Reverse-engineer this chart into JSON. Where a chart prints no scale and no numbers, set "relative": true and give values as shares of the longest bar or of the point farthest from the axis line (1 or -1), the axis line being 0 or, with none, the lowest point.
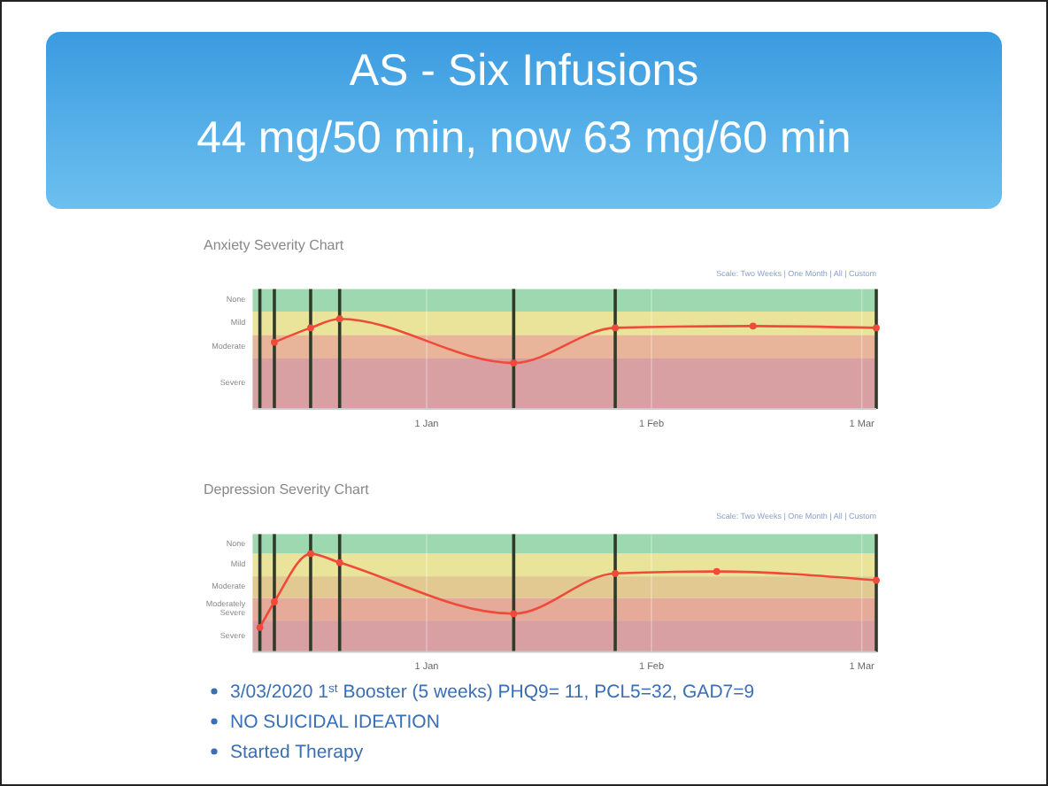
{
  "chart_data": [
    {
      "type": "other",
      "title": "AS -  Six Infusions",
      "subtitle": "44 mg/50 min, now 63 mg/60 min"
    },
    {
      "type": "line",
      "title": "Anxiety Severity Chart",
      "annotations": [
        "Scale: Two Weeks | One Month | All | Custom"
      ],
      "relative": true,
      "x": [
        "2019-12-11",
        "2019-12-16",
        "2019-12-20",
        "2020-01-13",
        "2020-01-27",
        "2020-02-15",
        "2020-03-03"
      ],
      "series": [
        {
          "color": "#f04a3a",
          "values": [
            0.74,
            0.9,
            1,
            0.51,
            0.9,
            0.92,
            0.9
          ]
        }
      ],
      "xlim": [
        "2019-12-08",
        "2020-03-03"
      ],
      "xticks": [
        {
          "value": "2020-01-01",
          "label": "1 Jan"
        },
        {
          "value": "2020-02-01",
          "label": "1 Feb"
        },
        {
          "value": "2020-03-01",
          "label": "1 Mar"
        }
      ],
      "bands": [
        {
          "axis": "y",
          "from": 1.08,
          "to": 1.33,
          "color": "#9dd8b0",
          "label": "None"
        },
        {
          "axis": "y",
          "from": 0.82,
          "to": 1.08,
          "color": "#e9e49a",
          "label": "Mild"
        },
        {
          "axis": "y",
          "from": 0.56,
          "to": 0.82,
          "color": "#e8b59a",
          "label": "Moderate"
        },
        {
          "axis": "y",
          "from": 0,
          "to": 0.56,
          "color": "#d9a0a3",
          "label": "Severe"
        }
      ],
      "ref_lines": [
        {
          "axis": "x",
          "value": "2019-12-09",
          "color": "#2f3a2a"
        },
        {
          "axis": "x",
          "value": "2019-12-11",
          "color": "#2f3a2a"
        },
        {
          "axis": "x",
          "value": "2019-12-16",
          "color": "#2f3a2a"
        },
        {
          "axis": "x",
          "value": "2019-12-20",
          "color": "#2f3a2a"
        },
        {
          "axis": "x",
          "value": "2020-01-13",
          "color": "#2f3a2a"
        },
        {
          "axis": "x",
          "value": "2020-01-27",
          "color": "#2f3a2a"
        },
        {
          "axis": "x",
          "value": "2020-03-03",
          "color": "#2f3a2a"
        }
      ],
      "grid": "x",
      "marker": "circle",
      "line_style": "solid"
    },
    {
      "type": "line",
      "title": "Depression Severity Chart",
      "annotations": [
        "Scale: Two Weeks | One Month | All | Custom"
      ],
      "relative": true,
      "x": [
        "2019-12-09",
        "2019-12-11",
        "2019-12-16",
        "2019-12-20",
        "2020-01-13",
        "2020-01-27",
        "2020-02-10",
        "2020-03-03"
      ],
      "series": [
        {
          "color": "#f04a3a",
          "values": [
            0.25,
            0.51,
            1,
            0.91,
            0.39,
            0.8,
            0.82,
            0.73
          ]
        }
      ],
      "xlim": [
        "2019-12-08",
        "2020-03-03"
      ],
      "xticks": [
        {
          "value": "2020-01-01",
          "label": "1 Jan"
        },
        {
          "value": "2020-02-01",
          "label": "1 Feb"
        },
        {
          "value": "2020-03-01",
          "label": "1 Mar"
        }
      ],
      "bands": [
        {
          "axis": "y",
          "from": 1,
          "to": 1.2,
          "color": "#9dd8b0",
          "label": "None"
        },
        {
          "axis": "y",
          "from": 0.77,
          "to": 1,
          "color": "#e9e49a",
          "label": "Mild"
        },
        {
          "axis": "y",
          "from": 0.55,
          "to": 0.77,
          "color": "#e2c992",
          "label": "Moderate"
        },
        {
          "axis": "y",
          "from": 0.32,
          "to": 0.55,
          "color": "#e5aa98",
          "label": "Moderately Severe"
        },
        {
          "axis": "y",
          "from": 0,
          "to": 0.32,
          "color": "#d9a0a3",
          "label": "Severe"
        }
      ],
      "ref_lines": [
        {
          "axis": "x",
          "value": "2019-12-09",
          "color": "#2f3a2a"
        },
        {
          "axis": "x",
          "value": "2019-12-11",
          "color": "#2f3a2a"
        },
        {
          "axis": "x",
          "value": "2019-12-16",
          "color": "#2f3a2a"
        },
        {
          "axis": "x",
          "value": "2019-12-20",
          "color": "#2f3a2a"
        },
        {
          "axis": "x",
          "value": "2020-01-13",
          "color": "#2f3a2a"
        },
        {
          "axis": "x",
          "value": "2020-01-27",
          "color": "#2f3a2a"
        },
        {
          "axis": "x",
          "value": "2020-03-03",
          "color": "#2f3a2a"
        }
      ],
      "grid": "x",
      "marker": "circle",
      "line_style": "solid"
    },
    {
      "type": "other",
      "annotations": [
        "3/03/2020 1$^{st}$ Booster (5 weeks) PHQ9= 11, PCL5=32, GAD7=9",
        "NO SUICIDAL IDEATION",
        "Started Therapy"
      ]
    }
  ]
}
